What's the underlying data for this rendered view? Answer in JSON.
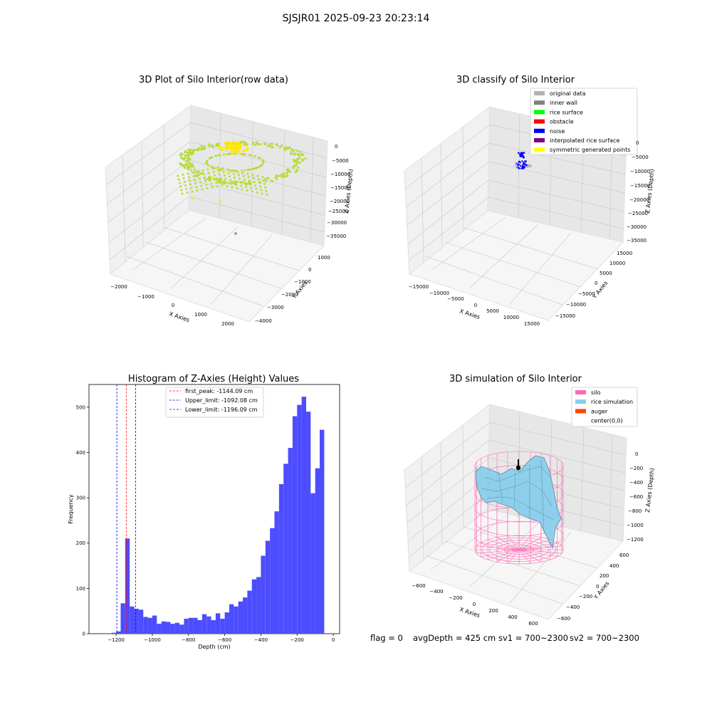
{
  "figure": {
    "suptitle": "SJSJR01 2025-09-23 20:23:14"
  },
  "panels": {
    "raw": {
      "title": "3D Plot of Silo Interior(row data)",
      "xlabel": "X Axies",
      "ylabel": "Y Axies",
      "zlabel": "Z Axies (Depth)",
      "xticks": [
        "−2000",
        "−1000",
        "0",
        "1000",
        "2000"
      ],
      "yticks": [
        "1000",
        "0",
        "−1000",
        "−2000",
        "−3000",
        "−4000"
      ],
      "zticks": [
        "0",
        "−5000",
        "−10000",
        "−15000",
        "−20000",
        "−25000",
        "−30000",
        "−35000"
      ],
      "colors": {
        "points": "#b8dc3a",
        "peak": "#ffe800",
        "stray": "#a0a0a0"
      }
    },
    "classify": {
      "title": "3D classify of Silo Interior",
      "xlabel": "X Axies",
      "ylabel": "Y Axies",
      "zlabel": "Z Axies (Depth)",
      "xticks": [
        "−15000",
        "−10000",
        "−5000",
        "0",
        "5000",
        "10000",
        "15000"
      ],
      "yticks": [
        "15000",
        "10000",
        "5000",
        "0",
        "−5000",
        "−10000",
        "−15000"
      ],
      "zticks": [
        "0",
        "−5000",
        "−10000",
        "−15000",
        "−20000",
        "−25000",
        "−30000",
        "−35000"
      ],
      "legend": [
        {
          "label": "original data",
          "color": "#b3b3b3"
        },
        {
          "label": "inner wall",
          "color": "#808080"
        },
        {
          "label": "rice surface",
          "color": "#00ff00"
        },
        {
          "label": "obstacle",
          "color": "#ff0000"
        },
        {
          "label": "noise",
          "color": "#0000ff"
        },
        {
          "label": "interpolated rice surface",
          "color": "#800080"
        },
        {
          "label": "symmetric generated points",
          "color": "#ffff00"
        }
      ]
    },
    "simulation": {
      "title": "3D simulation of Silo Interior",
      "xlabel": "X Axies",
      "ylabel": "Y Axies",
      "zlabel": "Z Axies (Depth)",
      "xticks": [
        "−600",
        "−400",
        "−200",
        "0",
        "200",
        "400",
        "600"
      ],
      "yticks": [
        "600",
        "400",
        "200",
        "0",
        "−200",
        "−400",
        "−600"
      ],
      "zticks": [
        "0",
        "−200",
        "−400",
        "−600",
        "−800",
        "−1000",
        "−1200"
      ],
      "legend": [
        {
          "label": "silo",
          "color": "#ff69b4"
        },
        {
          "label": "rice simulation",
          "color": "#87ceeb"
        },
        {
          "label": "auger",
          "color": "#ff4500"
        },
        {
          "label": "center(0,0)",
          "color": "#ffffff"
        }
      ]
    }
  },
  "footer": {
    "flag": "flag = 0",
    "avg": "avgDepth = 425 cm",
    "sv1": "sv1 = 700~2300",
    "sv2": "sv2 = 700~2300"
  },
  "chart_data": {
    "type": "bar",
    "title": "Histogram of Z-Axies (Height) Values",
    "xlabel": "Depth (cm)",
    "ylabel": "Frequency",
    "xlim": [
      -1350,
      35
    ],
    "ylim": [
      0,
      550
    ],
    "xticks": [
      "−1200",
      "−1000",
      "−800",
      "−600",
      "−400",
      "−200",
      "0"
    ],
    "yticks": [
      "0",
      "100",
      "200",
      "300",
      "400",
      "500"
    ],
    "bar_color": "#4d4dff",
    "bin_start": -1300,
    "bin_width": 25,
    "counts": [
      1,
      0,
      1,
      2,
      5,
      67,
      210,
      60,
      55,
      53,
      37,
      35,
      40,
      22,
      27,
      26,
      22,
      24,
      20,
      33,
      35,
      35,
      30,
      43,
      38,
      30,
      45,
      33,
      47,
      65,
      60,
      71,
      80,
      95,
      120,
      125,
      172,
      205,
      233,
      270,
      330,
      375,
      410,
      480,
      505,
      523,
      490,
      310,
      365,
      450
    ],
    "lines": [
      {
        "label": "first_peak: -1144.09 cm",
        "x": -1144.09,
        "color": "#ff0000"
      },
      {
        "label": "Upper_limit: -1092.08 cm",
        "x": -1092.08,
        "color": "#0000ff"
      },
      {
        "label": "Lower_limit: -1196.09 cm",
        "x": -1196.09,
        "color": "#0000ff"
      }
    ]
  }
}
